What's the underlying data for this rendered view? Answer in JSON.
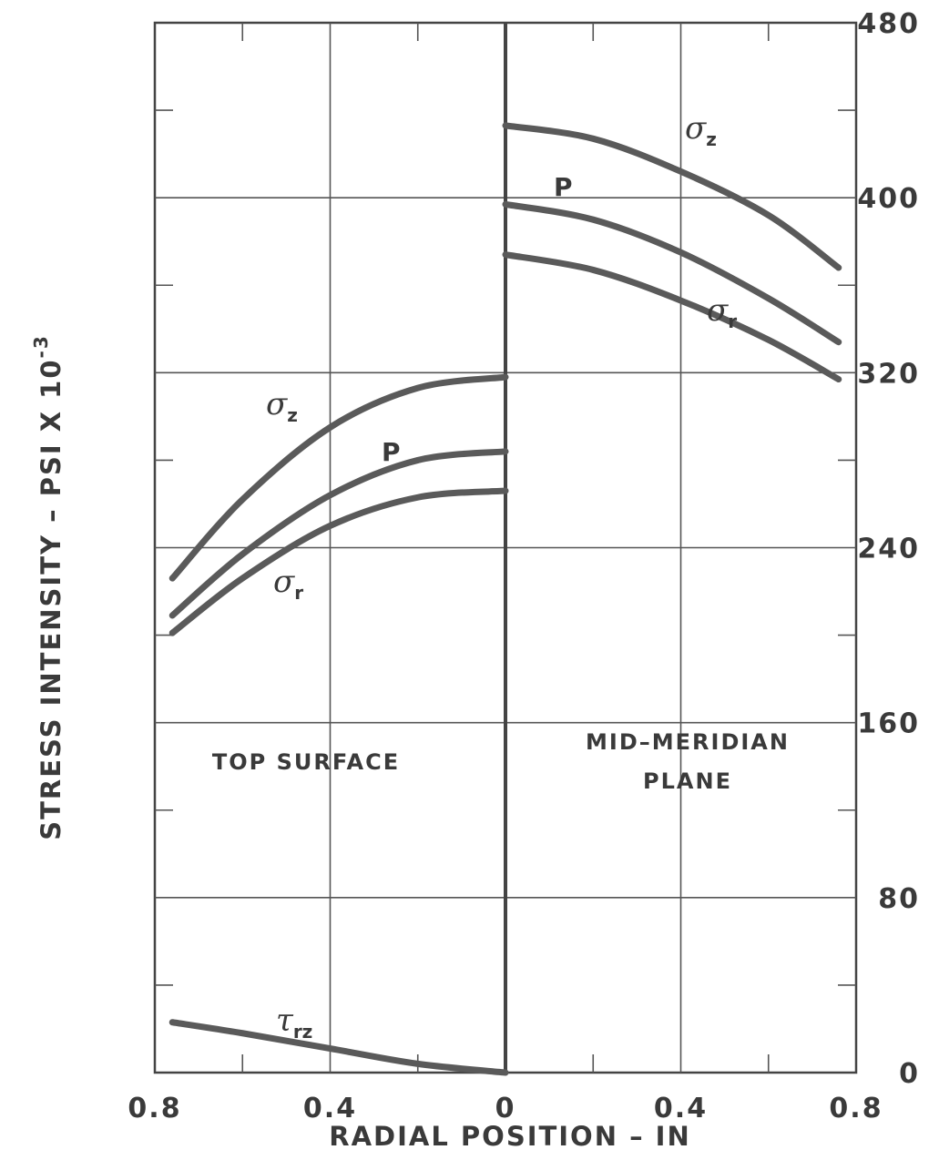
{
  "chart_data": {
    "type": "line",
    "ylabel": "STRESS INTENSITY – PSI X 10",
    "ylabel_exponent": "-3",
    "xlabel": "RADIAL POSITION – IN",
    "x_tick_labels": [
      "0.8",
      "0.4",
      "0",
      "0.4",
      "0.8"
    ],
    "y_tick_labels": [
      "0",
      "80",
      "160",
      "240",
      "320",
      "400",
      "480"
    ],
    "ylim": [
      0,
      480
    ],
    "y_ticks": [
      0,
      80,
      160,
      240,
      320,
      400,
      480
    ],
    "grid": true,
    "panels": [
      {
        "label": "TOP SURFACE",
        "x_direction": "reversed",
        "xlim": [
          0.8,
          0
        ],
        "series": [
          {
            "name": "σz",
            "x": [
              0.76,
              0.6,
              0.4,
              0.2,
              0.0
            ],
            "y": [
              226,
              262,
              295,
              313,
              318
            ]
          },
          {
            "name": "P",
            "x": [
              0.76,
              0.6,
              0.4,
              0.2,
              0.0
            ],
            "y": [
              209,
              237,
              264,
              280,
              284
            ]
          },
          {
            "name": "σr",
            "x": [
              0.76,
              0.6,
              0.4,
              0.2,
              0.0
            ],
            "y": [
              201,
              226,
              250,
              263,
              266
            ]
          },
          {
            "name": "τrz",
            "x": [
              0.76,
              0.6,
              0.4,
              0.2,
              0.0
            ],
            "y": [
              23,
              18,
              11,
              4,
              0
            ]
          }
        ]
      },
      {
        "label_lines": [
          "MID–MERIDIAN",
          "PLANE"
        ],
        "xlim": [
          0,
          0.8
        ],
        "series": [
          {
            "name": "σz",
            "x": [
              0.0,
              0.2,
              0.4,
              0.6,
              0.76
            ],
            "y": [
              433,
              427,
              412,
              392,
              368
            ]
          },
          {
            "name": "P",
            "x": [
              0.0,
              0.2,
              0.4,
              0.6,
              0.76
            ],
            "y": [
              397,
              390,
              375,
              354,
              334
            ]
          },
          {
            "name": "σr",
            "x": [
              0.0,
              0.2,
              0.4,
              0.6,
              0.76
            ],
            "y": [
              374,
              367,
              353,
              335,
              317
            ]
          }
        ]
      }
    ]
  },
  "labels": {
    "left_sigma": "σ",
    "z": "z",
    "r": "r",
    "rz": "rz",
    "tau": "τ",
    "P": "P"
  }
}
